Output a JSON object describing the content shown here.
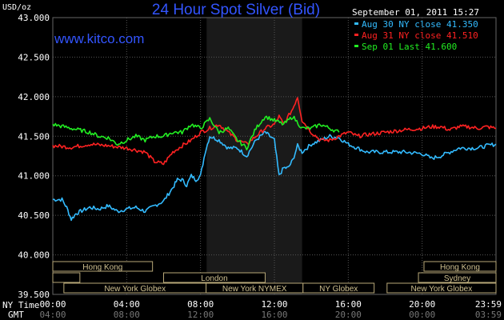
{
  "header": {
    "title": "24 Hour Spot Silver (Bid)",
    "brand": "www.kitco.com",
    "date": "September 01, 2011 15:27",
    "y_unit": "USD/oz",
    "row_label_ny": "NY Time",
    "row_label_gmt": "GMT"
  },
  "legend": [
    {
      "text": "Aug 30 NY close 41.350",
      "color": "#33bbff"
    },
    {
      "text": "Aug 31 NY close 41.510",
      "color": "#ff2222"
    },
    {
      "text": "Sep 01 Last 41.600",
      "color": "#22ee22"
    }
  ],
  "markets": {
    "row1": [
      {
        "label": "Hong Kong"
      },
      {
        "label": "Hong Kong"
      }
    ],
    "row2": [
      {
        "label": "London"
      },
      {
        "label": "Sydney"
      }
    ],
    "row3": [
      {
        "label": "New York Globex"
      },
      {
        "label": "New York NYMEX"
      },
      {
        "label": "NY Globex"
      },
      {
        "label": "New York Globex"
      }
    ]
  },
  "chart_data": {
    "type": "line",
    "title": "24 Hour Spot Silver (Bid)",
    "ylabel": "USD/oz",
    "ylim": [
      39.5,
      43.0
    ],
    "yticks": [
      "43.000",
      "42.500",
      "42.000",
      "41.500",
      "41.000",
      "40.500",
      "40.000",
      "39.500"
    ],
    "xlim": [
      0,
      24
    ],
    "x_ticks_ny": [
      "00:00",
      "04:00",
      "08:00",
      "12:00",
      "16:00",
      "20:00",
      "23:59"
    ],
    "x_ticks_gmt": [
      "04:00",
      "08:00",
      "12:00",
      "16:00",
      "20:00",
      "00:00",
      "03:59"
    ],
    "grid": true,
    "legend_position": "top-right",
    "highlight_band_hours": [
      8.33,
      13.5
    ],
    "series": [
      {
        "name": "Aug 30 NY close 41.350",
        "color": "#33bbff",
        "x": [
          0,
          0.5,
          0.75,
          1,
          1.25,
          1.5,
          2,
          2.5,
          3,
          3.5,
          4,
          4.5,
          5,
          5.5,
          6,
          6.5,
          6.75,
          7,
          7.25,
          7.5,
          7.75,
          8,
          8.25,
          8.5,
          9,
          9.5,
          10,
          10.5,
          11,
          11.5,
          11.75,
          12,
          12.25,
          12.5,
          12.75,
          13,
          13.25,
          13.5,
          14,
          14.5,
          15,
          15.5,
          16,
          16.5,
          17,
          18,
          19,
          20,
          20.5,
          21,
          21.5,
          22,
          23,
          23.5,
          24
        ],
        "y": [
          40.7,
          40.7,
          40.6,
          40.45,
          40.52,
          40.55,
          40.6,
          40.58,
          40.62,
          40.55,
          40.58,
          40.6,
          40.55,
          40.62,
          40.68,
          40.85,
          40.95,
          40.95,
          40.88,
          41.0,
          40.95,
          41.0,
          41.3,
          41.5,
          41.45,
          41.35,
          41.35,
          41.25,
          41.45,
          41.55,
          41.5,
          41.45,
          41.0,
          41.1,
          41.1,
          41.2,
          41.38,
          41.3,
          41.4,
          41.45,
          41.5,
          41.48,
          41.4,
          41.35,
          41.3,
          41.3,
          41.3,
          41.28,
          41.22,
          41.25,
          41.3,
          41.35,
          41.35,
          41.38,
          41.4
        ]
      },
      {
        "name": "Aug 31 NY close 41.510",
        "color": "#ff2222",
        "x": [
          0,
          1,
          2,
          3,
          4,
          5,
          5.5,
          6,
          6.5,
          7,
          7.5,
          8,
          8.5,
          9,
          9.5,
          10,
          10.5,
          11,
          11.5,
          12,
          12.25,
          12.5,
          13,
          13.25,
          13.5,
          14,
          14.5,
          15,
          15.5,
          16,
          16.5,
          17,
          18,
          19,
          20,
          20.5,
          21,
          21.5,
          22,
          22.5,
          23,
          23.5,
          24
        ],
        "y": [
          41.38,
          41.36,
          41.4,
          41.38,
          41.35,
          41.3,
          41.18,
          41.15,
          41.3,
          41.38,
          41.45,
          41.55,
          41.6,
          41.65,
          41.55,
          41.45,
          41.4,
          41.5,
          41.6,
          41.65,
          41.75,
          41.65,
          41.85,
          42.0,
          41.7,
          41.55,
          41.45,
          41.45,
          41.5,
          41.55,
          41.5,
          41.52,
          41.55,
          41.58,
          41.6,
          41.62,
          41.62,
          41.58,
          41.62,
          41.62,
          41.6,
          41.62,
          41.6
        ]
      },
      {
        "name": "Sep 01 Last 41.600",
        "color": "#22ee22",
        "x": [
          0,
          1,
          2,
          2.5,
          3,
          3.5,
          4,
          4.5,
          5,
          5.5,
          6,
          6.5,
          7,
          7.5,
          8,
          8.5,
          9,
          9.5,
          10,
          10.5,
          11,
          11.5,
          12,
          12.5,
          13,
          13.5,
          14,
          14.5,
          15,
          15.5
        ],
        "y": [
          41.65,
          41.6,
          41.55,
          41.5,
          41.48,
          41.4,
          41.45,
          41.5,
          41.45,
          41.5,
          41.5,
          41.55,
          41.55,
          41.65,
          41.6,
          41.72,
          41.55,
          41.6,
          41.45,
          41.35,
          41.6,
          41.75,
          41.7,
          41.65,
          41.75,
          41.6,
          41.6,
          41.65,
          41.6,
          41.55
        ]
      }
    ]
  }
}
